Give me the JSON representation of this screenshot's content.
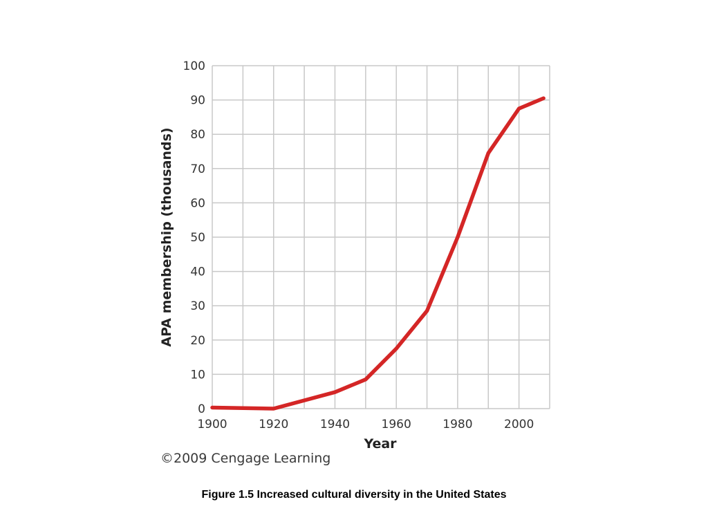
{
  "chart_data": {
    "type": "line",
    "xlabel": "Year",
    "ylabel": "APA membership (thousands)",
    "xlim": [
      1900,
      2010
    ],
    "ylim": [
      0,
      100
    ],
    "x_ticks": [
      "1900",
      "1920",
      "1940",
      "1960",
      "1980",
      "2000"
    ],
    "y_ticks": [
      "0",
      "10",
      "20",
      "30",
      "40",
      "50",
      "60",
      "70",
      "80",
      "90",
      "100"
    ],
    "grid": true,
    "series": [
      {
        "color": "#d42626",
        "points": [
          {
            "x": 1900,
            "y": 0.3
          },
          {
            "x": 1920,
            "y": 0.0
          },
          {
            "x": 1940,
            "y": 4.8
          },
          {
            "x": 1950,
            "y": 8.5
          },
          {
            "x": 1960,
            "y": 17.5
          },
          {
            "x": 1970,
            "y": 28.5
          },
          {
            "x": 1980,
            "y": 50.0
          },
          {
            "x": 1990,
            "y": 74.5
          },
          {
            "x": 2000,
            "y": 87.5
          },
          {
            "x": 2008,
            "y": 90.5
          }
        ]
      }
    ]
  },
  "copyright": "©2009 Cengage Learning",
  "caption": "Figure 1.5  Increased cultural diversity in the United States"
}
